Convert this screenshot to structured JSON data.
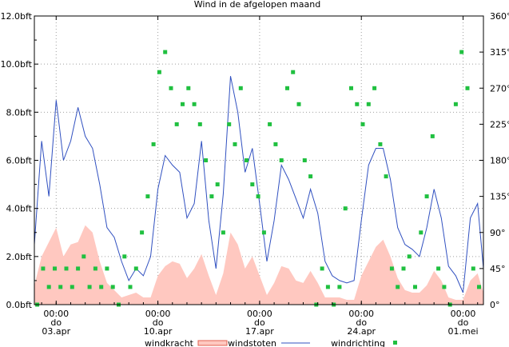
{
  "chart_data": {
    "type": "line",
    "title": "Wind in de afgelopen maand",
    "x_days_start": "2025-04-01",
    "x_range_days": [
      0,
      30.9
    ],
    "x_ticks": [
      {
        "day": 1.5,
        "time": "00:00",
        "weekday": "do",
        "date": "03.apr"
      },
      {
        "day": 8.5,
        "time": "00:00",
        "weekday": "do",
        "date": "10.apr"
      },
      {
        "day": 15.5,
        "time": "00:00",
        "weekday": "do",
        "date": "17.apr"
      },
      {
        "day": 22.5,
        "time": "00:00",
        "weekday": "do",
        "date": "24.apr"
      },
      {
        "day": 29.5,
        "time": "00:00",
        "weekday": "do",
        "date": "01.mei"
      }
    ],
    "y_left": {
      "unit": "bft",
      "range": [
        0,
        12
      ],
      "ticks": [
        "0.0bft",
        "2.0bft",
        "4.0bft",
        "6.0bft",
        "8.0bft",
        "10.0bft",
        "12.0bft"
      ]
    },
    "y_right": {
      "unit": "°",
      "range": [
        0,
        360
      ],
      "ticks": [
        "0°",
        "45°",
        "90°",
        "135°",
        "180°",
        "225°",
        "270°",
        "315°",
        "360°"
      ]
    },
    "legend": {
      "placement": "bottom",
      "entries": [
        "windkracht",
        "windstoten",
        "windrichting"
      ]
    },
    "series": [
      {
        "name": "windkracht",
        "type": "area",
        "axis": "left",
        "color": "#ffc8c0",
        "edge": "#e06050",
        "x": [
          0,
          0.5,
          1,
          1.5,
          2,
          2.5,
          3,
          3.5,
          4,
          4.5,
          5,
          5.5,
          6,
          6.5,
          7,
          7.5,
          8,
          8.5,
          9,
          9.5,
          10,
          10.5,
          11,
          11.5,
          12,
          12.5,
          13,
          13.5,
          14,
          14.5,
          15,
          15.5,
          16,
          16.5,
          17,
          17.5,
          18,
          18.5,
          19,
          19.5,
          20,
          20.5,
          21,
          21.5,
          22,
          22.5,
          23,
          23.5,
          24,
          24.5,
          25,
          25.5,
          26,
          26.5,
          27,
          27.5,
          28,
          28.5,
          29,
          29.5,
          30,
          30.5,
          30.9
        ],
        "values": [
          0.8,
          2.0,
          2.6,
          3.2,
          2.0,
          2.5,
          2.6,
          3.3,
          3.0,
          1.8,
          0.9,
          0.6,
          0.3,
          0.4,
          0.5,
          0.3,
          0.3,
          1.2,
          1.6,
          1.8,
          1.7,
          1.1,
          1.5,
          2.1,
          1.2,
          0.4,
          1.3,
          3.0,
          2.5,
          1.5,
          2.0,
          1.2,
          0.4,
          0.9,
          1.6,
          1.5,
          1.0,
          0.9,
          1.4,
          0.9,
          0.3,
          0.3,
          0.3,
          0.2,
          0.2,
          1.2,
          1.8,
          2.4,
          2.7,
          2.0,
          1.1,
          0.6,
          0.5,
          0.5,
          0.8,
          1.4,
          1.0,
          0.3,
          0.2,
          0.2,
          1.0,
          1.3,
          0.5
        ]
      },
      {
        "name": "windstoten",
        "type": "line",
        "axis": "left",
        "color": "#3050c0",
        "x": [
          0,
          0.5,
          1,
          1.5,
          2,
          2.5,
          3,
          3.5,
          4,
          4.5,
          5,
          5.5,
          6,
          6.5,
          7,
          7.5,
          8,
          8.5,
          9,
          9.5,
          10,
          10.5,
          11,
          11.5,
          12,
          12.5,
          13,
          13.5,
          14,
          14.5,
          15,
          15.5,
          16,
          16.5,
          17,
          17.5,
          18,
          18.5,
          19,
          19.5,
          20,
          20.5,
          21,
          21.5,
          22,
          22.5,
          23,
          23.5,
          24,
          24.5,
          25,
          25.5,
          26,
          26.5,
          27,
          27.5,
          28,
          28.5,
          29,
          29.5,
          30,
          30.5,
          30.9
        ],
        "values": [
          2.5,
          6.8,
          4.5,
          8.5,
          6.0,
          6.8,
          8.2,
          7.0,
          6.5,
          5.0,
          3.2,
          2.8,
          1.8,
          1.0,
          1.5,
          1.2,
          2.0,
          4.8,
          6.2,
          5.8,
          5.5,
          3.6,
          4.2,
          6.8,
          3.5,
          1.5,
          4.6,
          9.5,
          8.0,
          5.5,
          6.5,
          4.2,
          1.8,
          3.5,
          5.8,
          5.2,
          4.4,
          3.6,
          4.8,
          3.8,
          1.8,
          1.2,
          1.0,
          0.9,
          1.0,
          3.5,
          5.8,
          6.5,
          6.5,
          5.2,
          3.2,
          2.5,
          2.3,
          2.0,
          3.2,
          4.8,
          3.6,
          1.6,
          1.2,
          0.5,
          3.6,
          4.2,
          1.5
        ]
      },
      {
        "name": "windrichting",
        "type": "scatter",
        "axis": "right",
        "color": "#20c040",
        "x": [
          0.2,
          0.6,
          1.0,
          1.4,
          1.8,
          2.2,
          2.6,
          3.0,
          3.4,
          3.8,
          4.2,
          4.6,
          5.0,
          5.4,
          5.8,
          6.2,
          6.6,
          7.0,
          7.4,
          7.8,
          8.2,
          8.6,
          9.0,
          9.4,
          9.8,
          10.2,
          10.6,
          11.0,
          11.4,
          11.8,
          12.2,
          12.6,
          13.0,
          13.4,
          13.8,
          14.2,
          14.6,
          15.0,
          15.4,
          15.8,
          16.2,
          16.6,
          17.0,
          17.4,
          17.8,
          18.2,
          18.6,
          19.0,
          19.4,
          19.8,
          20.2,
          20.6,
          21.0,
          21.4,
          21.8,
          22.2,
          22.6,
          23.0,
          23.4,
          23.8,
          24.2,
          24.6,
          25.0,
          25.4,
          25.8,
          26.2,
          26.6,
          27.0,
          27.4,
          27.8,
          28.2,
          28.6,
          29.0,
          29.4,
          29.8,
          30.2,
          30.6
        ],
        "values": [
          0,
          45,
          22,
          45,
          22,
          45,
          22,
          45,
          60,
          22,
          45,
          22,
          45,
          22,
          0,
          60,
          22,
          45,
          90,
          135,
          200,
          290,
          315,
          270,
          225,
          250,
          270,
          250,
          225,
          180,
          135,
          150,
          90,
          225,
          200,
          270,
          180,
          150,
          135,
          90,
          225,
          200,
          180,
          270,
          290,
          250,
          180,
          160,
          0,
          45,
          22,
          0,
          22,
          120,
          270,
          250,
          225,
          250,
          270,
          200,
          160,
          45,
          22,
          45,
          60,
          22,
          90,
          135,
          210,
          45,
          22,
          0,
          250,
          315,
          270,
          45,
          22
        ]
      }
    ]
  }
}
